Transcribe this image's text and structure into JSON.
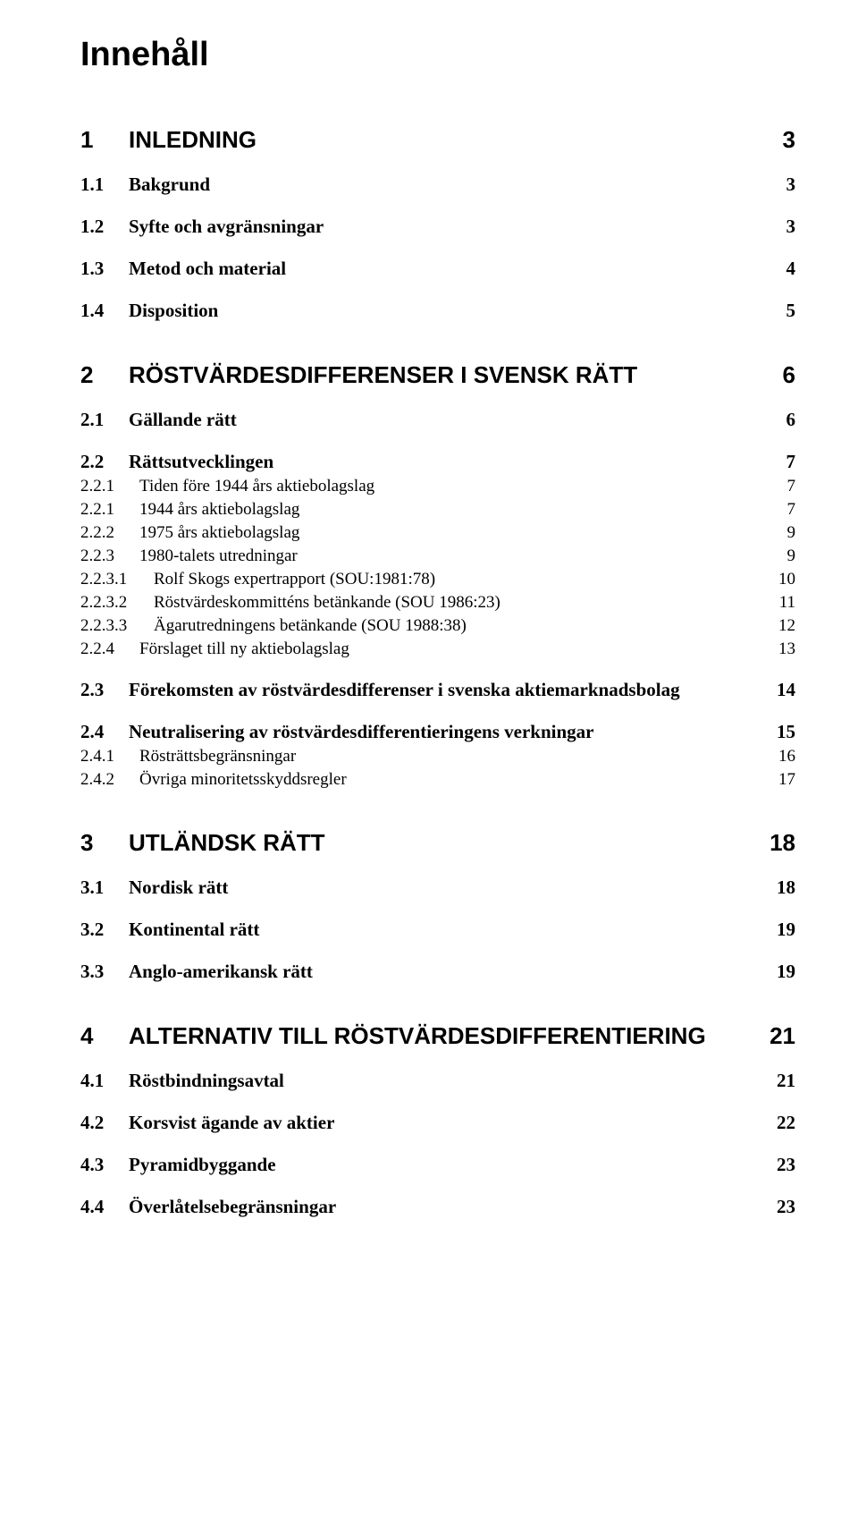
{
  "title": "Innehåll",
  "entries": [
    {
      "level": 1,
      "num": "1",
      "label": "INLEDNING",
      "page": "3"
    },
    {
      "level": 2,
      "num": "1.1",
      "label": "Bakgrund",
      "page": "3"
    },
    {
      "level": 2,
      "num": "1.2",
      "label": "Syfte och avgränsningar",
      "page": "3"
    },
    {
      "level": 2,
      "num": "1.3",
      "label": "Metod och material",
      "page": "4"
    },
    {
      "level": 2,
      "num": "1.4",
      "label": "Disposition",
      "page": "5"
    },
    {
      "level": 1,
      "num": "2",
      "label": "RÖSTVÄRDESDIFFERENSER I SVENSK RÄTT",
      "page": "6"
    },
    {
      "level": 2,
      "num": "2.1",
      "label": "Gällande rätt",
      "page": "6"
    },
    {
      "level": 2,
      "num": "2.2",
      "label": "Rättsutvecklingen",
      "page": "7"
    },
    {
      "level": 3,
      "num": "2.2.1",
      "label": "Tiden före 1944 års aktiebolagslag",
      "page": "7"
    },
    {
      "level": 3,
      "num": "2.2.1",
      "label": "1944 års aktiebolagslag",
      "page": "7"
    },
    {
      "level": 3,
      "num": "2.2.2",
      "label": "1975 års aktiebolagslag",
      "page": "9"
    },
    {
      "level": 3,
      "num": "2.2.3",
      "label": "1980-talets utredningar",
      "page": "9"
    },
    {
      "level": 4,
      "num": "2.2.3.1",
      "label": "Rolf Skogs expertrapport (SOU:1981:78)",
      "page": "10"
    },
    {
      "level": 4,
      "num": "2.2.3.2",
      "label": "Röstvärdeskommitténs betänkande (SOU 1986:23)",
      "page": "11"
    },
    {
      "level": 4,
      "num": "2.2.3.3",
      "label": "Ägarutredningens betänkande (SOU 1988:38)",
      "page": "12"
    },
    {
      "level": 3,
      "num": "2.2.4",
      "label": "Förslaget till ny aktiebolagslag",
      "page": "13"
    },
    {
      "level": 2,
      "num": "2.3",
      "label": "Förekomsten av röstvärdesdifferenser i svenska aktiemarknadsbolag",
      "page": "14"
    },
    {
      "level": 2,
      "num": "2.4",
      "label": "Neutralisering av röstvärdesdifferentieringens verkningar",
      "page": "15"
    },
    {
      "level": 3,
      "num": "2.4.1",
      "label": "Rösträttsbegränsningar",
      "page": "16"
    },
    {
      "level": 3,
      "num": "2.4.2",
      "label": "Övriga minoritetsskyddsregler",
      "page": "17"
    },
    {
      "level": 1,
      "num": "3",
      "label": "UTLÄNDSK RÄTT",
      "page": "18"
    },
    {
      "level": 2,
      "num": "3.1",
      "label": "Nordisk rätt",
      "page": "18"
    },
    {
      "level": 2,
      "num": "3.2",
      "label": "Kontinental rätt",
      "page": "19"
    },
    {
      "level": 2,
      "num": "3.3",
      "label": "Anglo-amerikansk rätt",
      "page": "19"
    },
    {
      "level": 1,
      "num": "4",
      "label": "ALTERNATIV TILL RÖSTVÄRDESDIFFERENTIERING",
      "page": "21"
    },
    {
      "level": 2,
      "num": "4.1",
      "label": "Röstbindningsavtal",
      "page": "21"
    },
    {
      "level": 2,
      "num": "4.2",
      "label": "Korsvist ägande av aktier",
      "page": "22"
    },
    {
      "level": 2,
      "num": "4.3",
      "label": "Pyramidbyggande",
      "page": "23"
    },
    {
      "level": 2,
      "num": "4.4",
      "label": "Överlåtelsebegränsningar",
      "page": "23"
    }
  ]
}
